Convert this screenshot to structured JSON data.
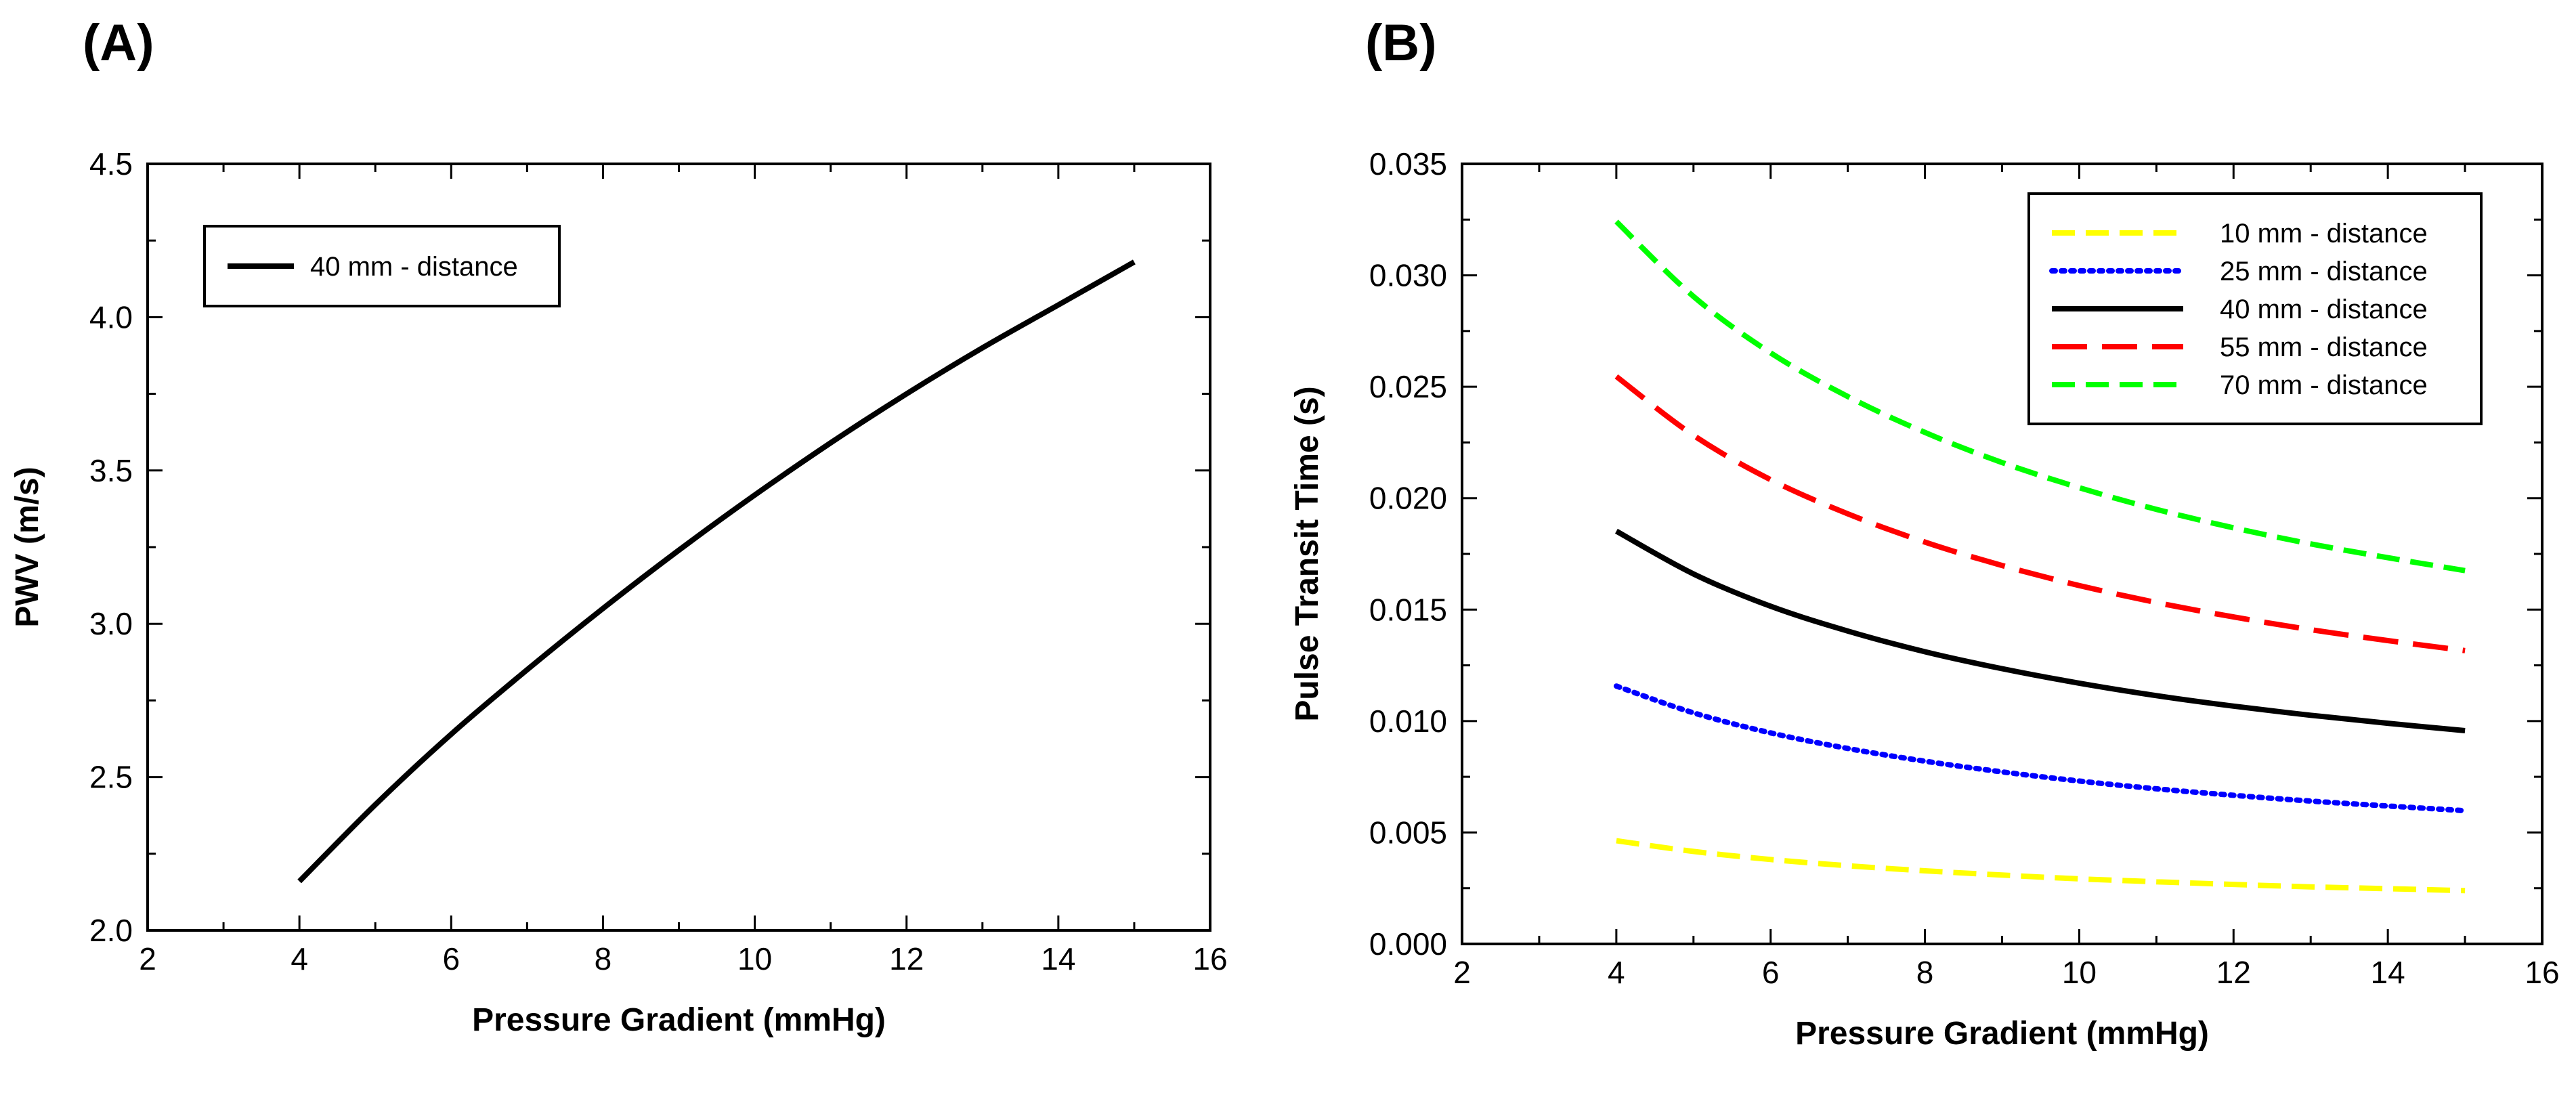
{
  "panels": {
    "a_label": "(A)",
    "b_label": "(B)"
  },
  "chart_data": [
    {
      "type": "line",
      "panel": "(A)",
      "xlabel": "Pressure Gradient (mmHg)",
      "ylabel": "PWV (m/s)",
      "xlim": [
        2,
        16
      ],
      "ylim": [
        2.0,
        4.5
      ],
      "xticks": [
        "2",
        "4",
        "6",
        "8",
        "10",
        "12",
        "14",
        "16"
      ],
      "yticks": [
        "2.0",
        "2.5",
        "3.0",
        "3.5",
        "4.0",
        "4.5"
      ],
      "x": [
        4,
        5,
        6,
        7,
        8,
        9,
        10,
        11,
        12,
        13,
        14,
        15
      ],
      "series": [
        {
          "name": "40 mm - distance",
          "color": "#000000",
          "dash": "solid",
          "values": [
            2.16,
            2.41,
            2.64,
            2.85,
            3.05,
            3.24,
            3.42,
            3.59,
            3.75,
            3.9,
            4.04,
            4.18
          ]
        }
      ],
      "legend_position": "top-left"
    },
    {
      "type": "line",
      "panel": "(B)",
      "xlabel": "Pressure Gradient (mmHg)",
      "ylabel": "Pulse Transit Time (s)",
      "xlim": [
        2,
        16
      ],
      "ylim": [
        0.0,
        0.035
      ],
      "xticks": [
        "2",
        "4",
        "6",
        "8",
        "10",
        "12",
        "14",
        "16"
      ],
      "yticks": [
        "0.000",
        "0.005",
        "0.010",
        "0.015",
        "0.020",
        "0.025",
        "0.030",
        "0.035"
      ],
      "x": [
        4,
        5,
        6,
        7,
        8,
        9,
        10,
        11,
        12,
        13,
        14,
        15
      ],
      "series": [
        {
          "name": "10 mm - distance",
          "color": "#ffff00",
          "dash": "dashed",
          "values": [
            0.00463,
            0.00415,
            0.00379,
            0.00351,
            0.00328,
            0.00309,
            0.00292,
            0.00279,
            0.00267,
            0.00256,
            0.00248,
            0.00239
          ]
        },
        {
          "name": "25 mm - distance",
          "color": "#0000ff",
          "dash": "dotted",
          "values": [
            0.01157,
            0.01037,
            0.00947,
            0.00877,
            0.0082,
            0.00772,
            0.00731,
            0.00696,
            0.00667,
            0.00641,
            0.00619,
            0.00598
          ]
        },
        {
          "name": "40 mm - distance",
          "color": "#000000",
          "dash": "solid",
          "values": [
            0.01852,
            0.0166,
            0.01515,
            0.01404,
            0.01311,
            0.01235,
            0.0117,
            0.01114,
            0.01067,
            0.01026,
            0.0099,
            0.00957
          ]
        },
        {
          "name": "55 mm - distance",
          "color": "#ff0000",
          "dash": "long-dashed",
          "values": [
            0.02546,
            0.02282,
            0.02083,
            0.0193,
            0.01803,
            0.01698,
            0.01608,
            0.01532,
            0.01467,
            0.0141,
            0.01361,
            0.01316
          ]
        },
        {
          "name": "70 mm - distance",
          "color": "#00ff00",
          "dash": "dashed",
          "values": [
            0.03241,
            0.02905,
            0.02652,
            0.02456,
            0.02295,
            0.0216,
            0.02047,
            0.0195,
            0.01867,
            0.01795,
            0.01733,
            0.01675
          ]
        }
      ],
      "legend_position": "top-right"
    }
  ]
}
